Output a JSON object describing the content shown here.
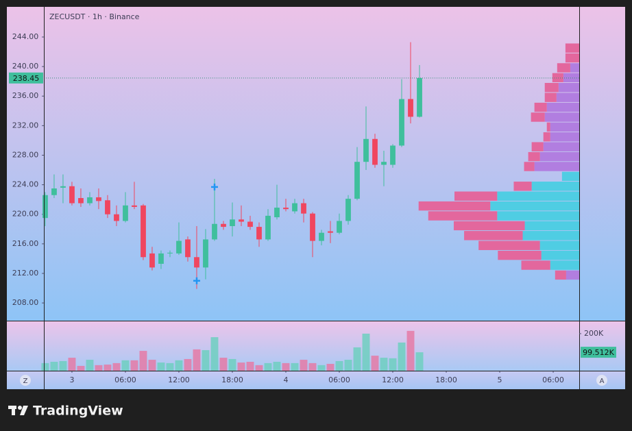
{
  "chart_data": {
    "type": "candlestick",
    "title": "ZECUSDT · 1h · Binance",
    "up_color": "#3fbf9c",
    "down_color": "#f0465f",
    "open": [
      219.5,
      222.6,
      223.6,
      223.8,
      222.2,
      221.5,
      222.3,
      221.9,
      220.0,
      219.1,
      221.2,
      221.2,
      214.7,
      213.3,
      214.7,
      214.7,
      216.6,
      214.2,
      212.8,
      216.6,
      218.7,
      218.4,
      219.3,
      219.0,
      218.3,
      216.6,
      219.6,
      220.9,
      220.4,
      221.5,
      220.1,
      216.4,
      217.7,
      217.5,
      219.1,
      222.1,
      227.1,
      230.2,
      226.7,
      226.7,
      229.3,
      235.6,
      233.2
    ],
    "high": [
      223.0,
      225.4,
      225.4,
      224.4,
      223.5,
      223.0,
      223.5,
      222.6,
      221.2,
      223.0,
      224.4,
      221.4,
      215.6,
      215.1,
      215.1,
      218.9,
      217.0,
      218.4,
      218.0,
      224.8,
      219.1,
      221.6,
      221.2,
      219.8,
      218.9,
      220.7,
      224.0,
      222.1,
      222.1,
      222.1,
      220.3,
      217.9,
      219.1,
      220.1,
      222.6,
      229.1,
      234.6,
      230.9,
      228.6,
      229.5,
      238.3,
      243.3,
      240.2
    ],
    "low": [
      218.4,
      222.2,
      221.5,
      221.2,
      221.0,
      221.2,
      220.7,
      219.5,
      218.4,
      218.9,
      220.7,
      213.8,
      212.4,
      212.6,
      214.2,
      214.5,
      213.6,
      209.9,
      211.2,
      216.4,
      217.9,
      217.0,
      218.4,
      217.9,
      215.6,
      216.4,
      219.3,
      220.4,
      220.1,
      218.9,
      214.2,
      215.8,
      216.1,
      217.3,
      218.6,
      221.9,
      226.0,
      226.3,
      223.8,
      226.3,
      229.1,
      232.3,
      233.1
    ],
    "close": [
      222.6,
      223.5,
      223.8,
      221.5,
      221.5,
      222.3,
      221.8,
      220.0,
      219.1,
      221.2,
      221.0,
      214.2,
      212.8,
      214.7,
      214.8,
      216.4,
      214.2,
      212.8,
      216.6,
      218.7,
      218.3,
      219.3,
      219.0,
      218.3,
      216.6,
      219.8,
      220.9,
      220.7,
      221.5,
      220.1,
      216.4,
      217.5,
      217.5,
      219.1,
      222.1,
      227.1,
      230.2,
      226.7,
      227.1,
      229.3,
      235.6,
      233.2,
      238.45
    ],
    "xlim": [
      -0.15,
      59.92
    ],
    "xticks": [
      {
        "value": 3,
        "label": "3"
      },
      {
        "value": 9,
        "label": "06:00"
      },
      {
        "value": 15,
        "label": "12:00"
      },
      {
        "value": 21,
        "label": "18:00"
      },
      {
        "value": 27,
        "label": "4"
      },
      {
        "value": 33,
        "label": "06:00"
      },
      {
        "value": 39,
        "label": "12:00"
      },
      {
        "value": 45,
        "label": "18:00"
      },
      {
        "value": 51,
        "label": "5"
      },
      {
        "value": 57,
        "label": "06:00"
      }
    ],
    "ylim": [
      205.6,
      248.08
    ],
    "yticks": [
      {
        "value": 208,
        "label": "208.00"
      },
      {
        "value": 212,
        "label": "212.00"
      },
      {
        "value": 216,
        "label": "216.00"
      },
      {
        "value": 220,
        "label": "220.00"
      },
      {
        "value": 224,
        "label": "224.00"
      },
      {
        "value": 228,
        "label": "228.00"
      },
      {
        "value": 232,
        "label": "232.00"
      },
      {
        "value": 236,
        "label": "236.00"
      },
      {
        "value": 240,
        "label": "240.00"
      },
      {
        "value": 244,
        "label": "244.00"
      }
    ],
    "markers": [
      {
        "index": 17,
        "price": 211.0
      },
      {
        "index": 19,
        "price": 223.7
      }
    ],
    "marker_color": "#2196f3",
    "volume": {
      "values": [
        41000,
        48000,
        52000,
        70000,
        26000,
        59000,
        30000,
        33000,
        41000,
        56000,
        56000,
        107000,
        59000,
        44000,
        41000,
        56000,
        63000,
        115000,
        111000,
        181000,
        70000,
        63000,
        44000,
        48000,
        30000,
        41000,
        48000,
        41000,
        41000,
        59000,
        41000,
        30000,
        37000,
        52000,
        59000,
        126000,
        200000,
        81000,
        70000,
        67000,
        152000,
        215000,
        99512
      ],
      "last_label": "99.512K",
      "up_color": "#6fcfbf",
      "down_color": "#e57aa6",
      "ylim": [
        0,
        270000
      ],
      "yticks": [
        {
          "value": 200000,
          "label": "200K"
        }
      ]
    },
    "volume_profile": {
      "bins": [
        243.17,
        241.83,
        240.5,
        239.16,
        237.83,
        236.49,
        235.15,
        233.82,
        232.48,
        231.15,
        229.81,
        228.47,
        227.14,
        225.8,
        224.47,
        223.13,
        221.79,
        220.46,
        219.12,
        217.79,
        216.45,
        215.11,
        213.78,
        212.44,
        211.11
      ],
      "inner": [
        0,
        0,
        13,
        23,
        30,
        33,
        47,
        50,
        42,
        42,
        52,
        57,
        65,
        25,
        69,
        119,
        129,
        119,
        79,
        82,
        57,
        55,
        42,
        19
      ],
      "outer": [
        20,
        20,
        19,
        16,
        20,
        17,
        18,
        20,
        5,
        10,
        17,
        17,
        15,
        0,
        26,
        62,
        104,
        100,
        103,
        85,
        89,
        63,
        42,
        16
      ],
      "value_area": [
        false,
        false,
        false,
        false,
        false,
        false,
        false,
        false,
        false,
        false,
        false,
        false,
        false,
        true,
        true,
        true,
        true,
        true,
        true,
        true,
        true,
        true,
        true,
        false
      ],
      "outer_color": "#e3679d",
      "inner_color": "#b17ee0",
      "value_area_color": "#4fcde3"
    },
    "left_button": "Z",
    "right_button": "A",
    "logo": "TradingView"
  }
}
